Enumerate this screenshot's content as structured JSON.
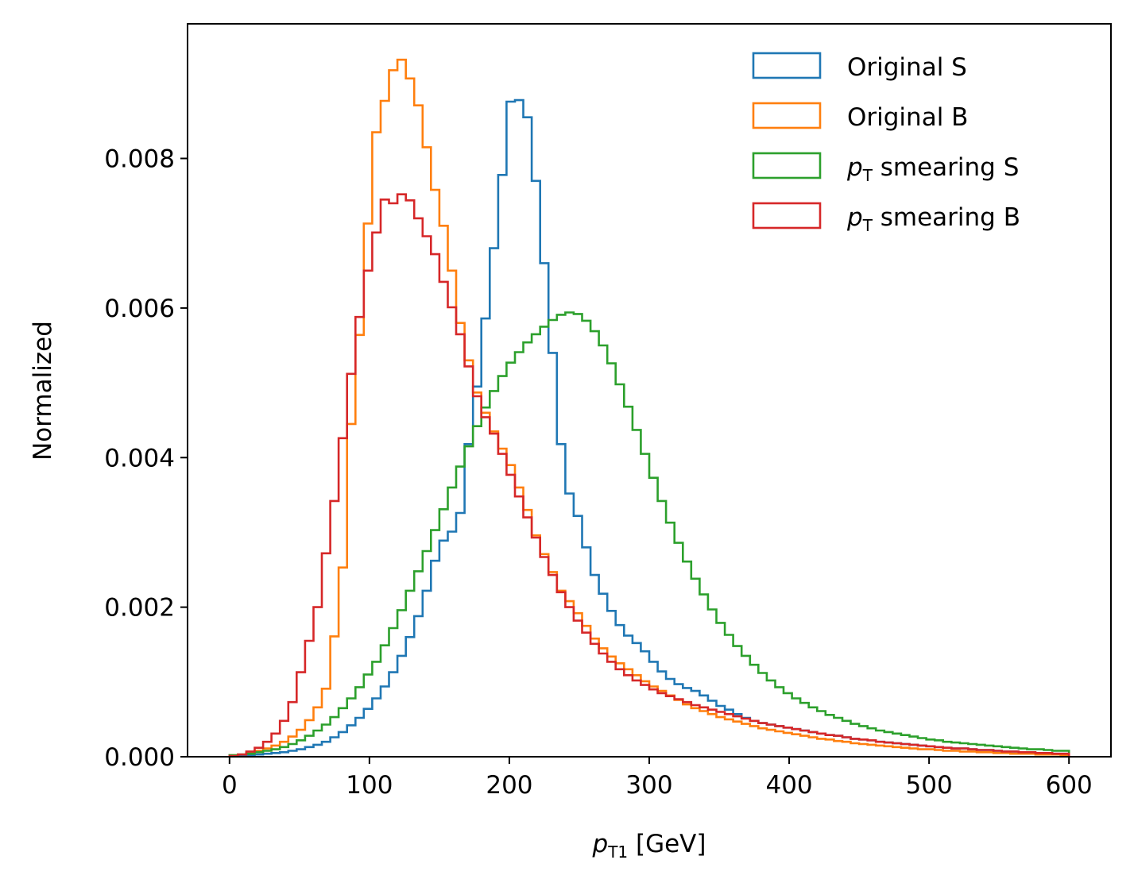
{
  "chart_data": {
    "type": "line",
    "style": "step-histogram",
    "xlabel_var": "p",
    "xlabel_sub": "T1",
    "xlabel_unit": "[GeV]",
    "ylabel": "Normalized",
    "xlim": [
      -30,
      630
    ],
    "ylim": [
      0,
      0.0098
    ],
    "xticks": [
      "0",
      "100",
      "200",
      "300",
      "400",
      "500",
      "600"
    ],
    "yticks": [
      "0.000",
      "0.002",
      "0.004",
      "0.006",
      "0.008"
    ],
    "legend_position": "upper right",
    "grid": false,
    "bin_width": 6,
    "x": [
      0,
      6,
      12,
      18,
      24,
      30,
      36,
      42,
      48,
      54,
      60,
      66,
      72,
      78,
      84,
      90,
      96,
      102,
      108,
      114,
      120,
      126,
      132,
      138,
      144,
      150,
      156,
      162,
      168,
      174,
      180,
      186,
      192,
      198,
      204,
      210,
      216,
      222,
      228,
      234,
      240,
      246,
      252,
      258,
      264,
      270,
      276,
      282,
      288,
      294,
      300,
      306,
      312,
      318,
      324,
      330,
      336,
      342,
      348,
      354,
      360,
      366,
      372,
      378,
      384,
      390,
      396,
      402,
      408,
      414,
      420,
      426,
      432,
      438,
      444,
      450,
      456,
      462,
      468,
      474,
      480,
      486,
      492,
      498,
      504,
      510,
      516,
      522,
      528,
      534,
      540,
      546,
      552,
      558,
      564,
      570,
      576,
      582,
      588,
      594
    ],
    "series": [
      {
        "name": "Original S",
        "color": "#1f77b4",
        "values": [
          1e-05,
          1e-05,
          2e-05,
          3e-05,
          4e-05,
          5e-05,
          6e-05,
          8e-05,
          0.0001,
          0.00013,
          0.00016,
          0.0002,
          0.00026,
          0.00033,
          0.00042,
          0.00052,
          0.00064,
          0.00078,
          0.00094,
          0.00113,
          0.00135,
          0.0016,
          0.00188,
          0.00222,
          0.00262,
          0.00289,
          0.00301,
          0.00326,
          0.00418,
          0.00495,
          0.00586,
          0.0068,
          0.00778,
          0.00876,
          0.00878,
          0.00855,
          0.0077,
          0.0066,
          0.0054,
          0.00418,
          0.00352,
          0.00322,
          0.0028,
          0.00243,
          0.00218,
          0.00195,
          0.00176,
          0.00162,
          0.00152,
          0.00141,
          0.00127,
          0.00114,
          0.00104,
          0.00097,
          0.00092,
          0.00088,
          0.00082,
          0.00075,
          0.00068,
          0.00063,
          0.00057,
          0.00052,
          0.00048,
          0.00045,
          0.00043,
          0.00041,
          0.00039,
          0.00037,
          0.00035,
          0.00033,
          0.00031,
          0.00029,
          0.00028,
          0.00026,
          0.00024,
          0.00023,
          0.00022,
          0.0002,
          0.00019,
          0.00018,
          0.00017,
          0.00016,
          0.00015,
          0.00014,
          0.00013,
          0.00012,
          0.00011,
          0.00011,
          0.0001,
          9e-05,
          9e-05,
          8e-05,
          7e-05,
          7e-05,
          6e-05,
          6e-05,
          5e-05,
          5e-05,
          4e-05,
          4e-05
        ]
      },
      {
        "name": "Original B",
        "color": "#ff7f0e",
        "values": [
          2e-05,
          3e-05,
          5e-05,
          8e-05,
          0.00011,
          0.00015,
          0.0002,
          0.00027,
          0.00036,
          0.00049,
          0.00066,
          0.00091,
          0.00161,
          0.00253,
          0.00445,
          0.00564,
          0.00713,
          0.00835,
          0.00877,
          0.00918,
          0.00932,
          0.00907,
          0.00871,
          0.00815,
          0.00758,
          0.0071,
          0.0065,
          0.0058,
          0.0053,
          0.00487,
          0.0046,
          0.00435,
          0.00412,
          0.0039,
          0.0036,
          0.0033,
          0.00296,
          0.00271,
          0.00247,
          0.00222,
          0.00208,
          0.00192,
          0.00175,
          0.00158,
          0.00145,
          0.00134,
          0.00125,
          0.00117,
          0.00109,
          0.00101,
          0.00094,
          0.00088,
          0.00082,
          0.00076,
          0.0007,
          0.00065,
          0.00061,
          0.00057,
          0.00053,
          0.0005,
          0.00047,
          0.00044,
          0.00041,
          0.00038,
          0.00036,
          0.00034,
          0.00032,
          0.0003,
          0.00028,
          0.00026,
          0.00024,
          0.00023,
          0.00021,
          0.0002,
          0.00018,
          0.00017,
          0.00016,
          0.00015,
          0.00014,
          0.00013,
          0.00012,
          0.00011,
          0.0001,
          0.0001,
          9e-05,
          8e-05,
          8e-05,
          7e-05,
          7e-05,
          6e-05,
          6e-05,
          5e-05,
          5e-05,
          4e-05,
          4e-05,
          4e-05,
          3e-05,
          3e-05,
          3e-05,
          2e-05
        ]
      },
      {
        "name": "p_T smearing S",
        "color": "#2ca02c",
        "values": [
          2e-05,
          3e-05,
          4e-05,
          6e-05,
          8e-05,
          0.0001,
          0.00013,
          0.00017,
          0.00022,
          0.00028,
          0.00035,
          0.00043,
          0.00053,
          0.00065,
          0.00078,
          0.00093,
          0.0011,
          0.00127,
          0.00149,
          0.00172,
          0.00196,
          0.00222,
          0.00248,
          0.00275,
          0.00303,
          0.00331,
          0.0036,
          0.00388,
          0.00415,
          0.00442,
          0.00467,
          0.00489,
          0.00509,
          0.00527,
          0.00541,
          0.00554,
          0.00565,
          0.00575,
          0.00584,
          0.00591,
          0.00594,
          0.00592,
          0.00583,
          0.00569,
          0.0055,
          0.00526,
          0.00498,
          0.00468,
          0.00437,
          0.00405,
          0.00373,
          0.00342,
          0.00313,
          0.00286,
          0.00261,
          0.00238,
          0.00217,
          0.00197,
          0.00179,
          0.00163,
          0.00148,
          0.00135,
          0.00123,
          0.00112,
          0.00102,
          0.00093,
          0.00085,
          0.00078,
          0.00072,
          0.00066,
          0.00061,
          0.00056,
          0.00052,
          0.00048,
          0.00044,
          0.00041,
          0.00038,
          0.00035,
          0.00033,
          0.00031,
          0.00029,
          0.00027,
          0.00025,
          0.00023,
          0.00022,
          0.0002,
          0.00019,
          0.00018,
          0.00017,
          0.00016,
          0.00015,
          0.00014,
          0.00013,
          0.00012,
          0.00011,
          0.0001,
          0.0001,
          9e-05,
          8e-05,
          8e-05
        ]
      },
      {
        "name": "p_T smearing B",
        "color": "#d62728",
        "values": [
          1e-05,
          3e-05,
          7e-05,
          0.00012,
          0.0002,
          0.00031,
          0.00048,
          0.00073,
          0.00113,
          0.00155,
          0.002,
          0.00272,
          0.00342,
          0.00426,
          0.00512,
          0.00588,
          0.0065,
          0.00701,
          0.00745,
          0.0074,
          0.00752,
          0.00744,
          0.0072,
          0.00696,
          0.00672,
          0.00635,
          0.00601,
          0.00565,
          0.00522,
          0.00482,
          0.00454,
          0.00432,
          0.00405,
          0.00377,
          0.00348,
          0.0032,
          0.00293,
          0.00267,
          0.00243,
          0.0022,
          0.002,
          0.00182,
          0.00166,
          0.00151,
          0.00138,
          0.00127,
          0.00117,
          0.00109,
          0.00102,
          0.00096,
          0.0009,
          0.00085,
          0.00081,
          0.00077,
          0.00073,
          0.00069,
          0.00066,
          0.00063,
          0.0006,
          0.00057,
          0.00054,
          0.00051,
          0.00048,
          0.00045,
          0.00043,
          0.00041,
          0.00039,
          0.00037,
          0.00035,
          0.00033,
          0.00031,
          0.00029,
          0.00028,
          0.00026,
          0.00024,
          0.00023,
          0.00022,
          0.0002,
          0.00019,
          0.00018,
          0.00017,
          0.00016,
          0.00015,
          0.00014,
          0.00013,
          0.00012,
          0.00011,
          0.00011,
          0.0001,
          9e-05,
          9e-05,
          8e-05,
          7e-05,
          7e-05,
          6e-05,
          6e-05,
          5e-05,
          5e-05,
          4e-05,
          4e-05
        ]
      }
    ]
  }
}
